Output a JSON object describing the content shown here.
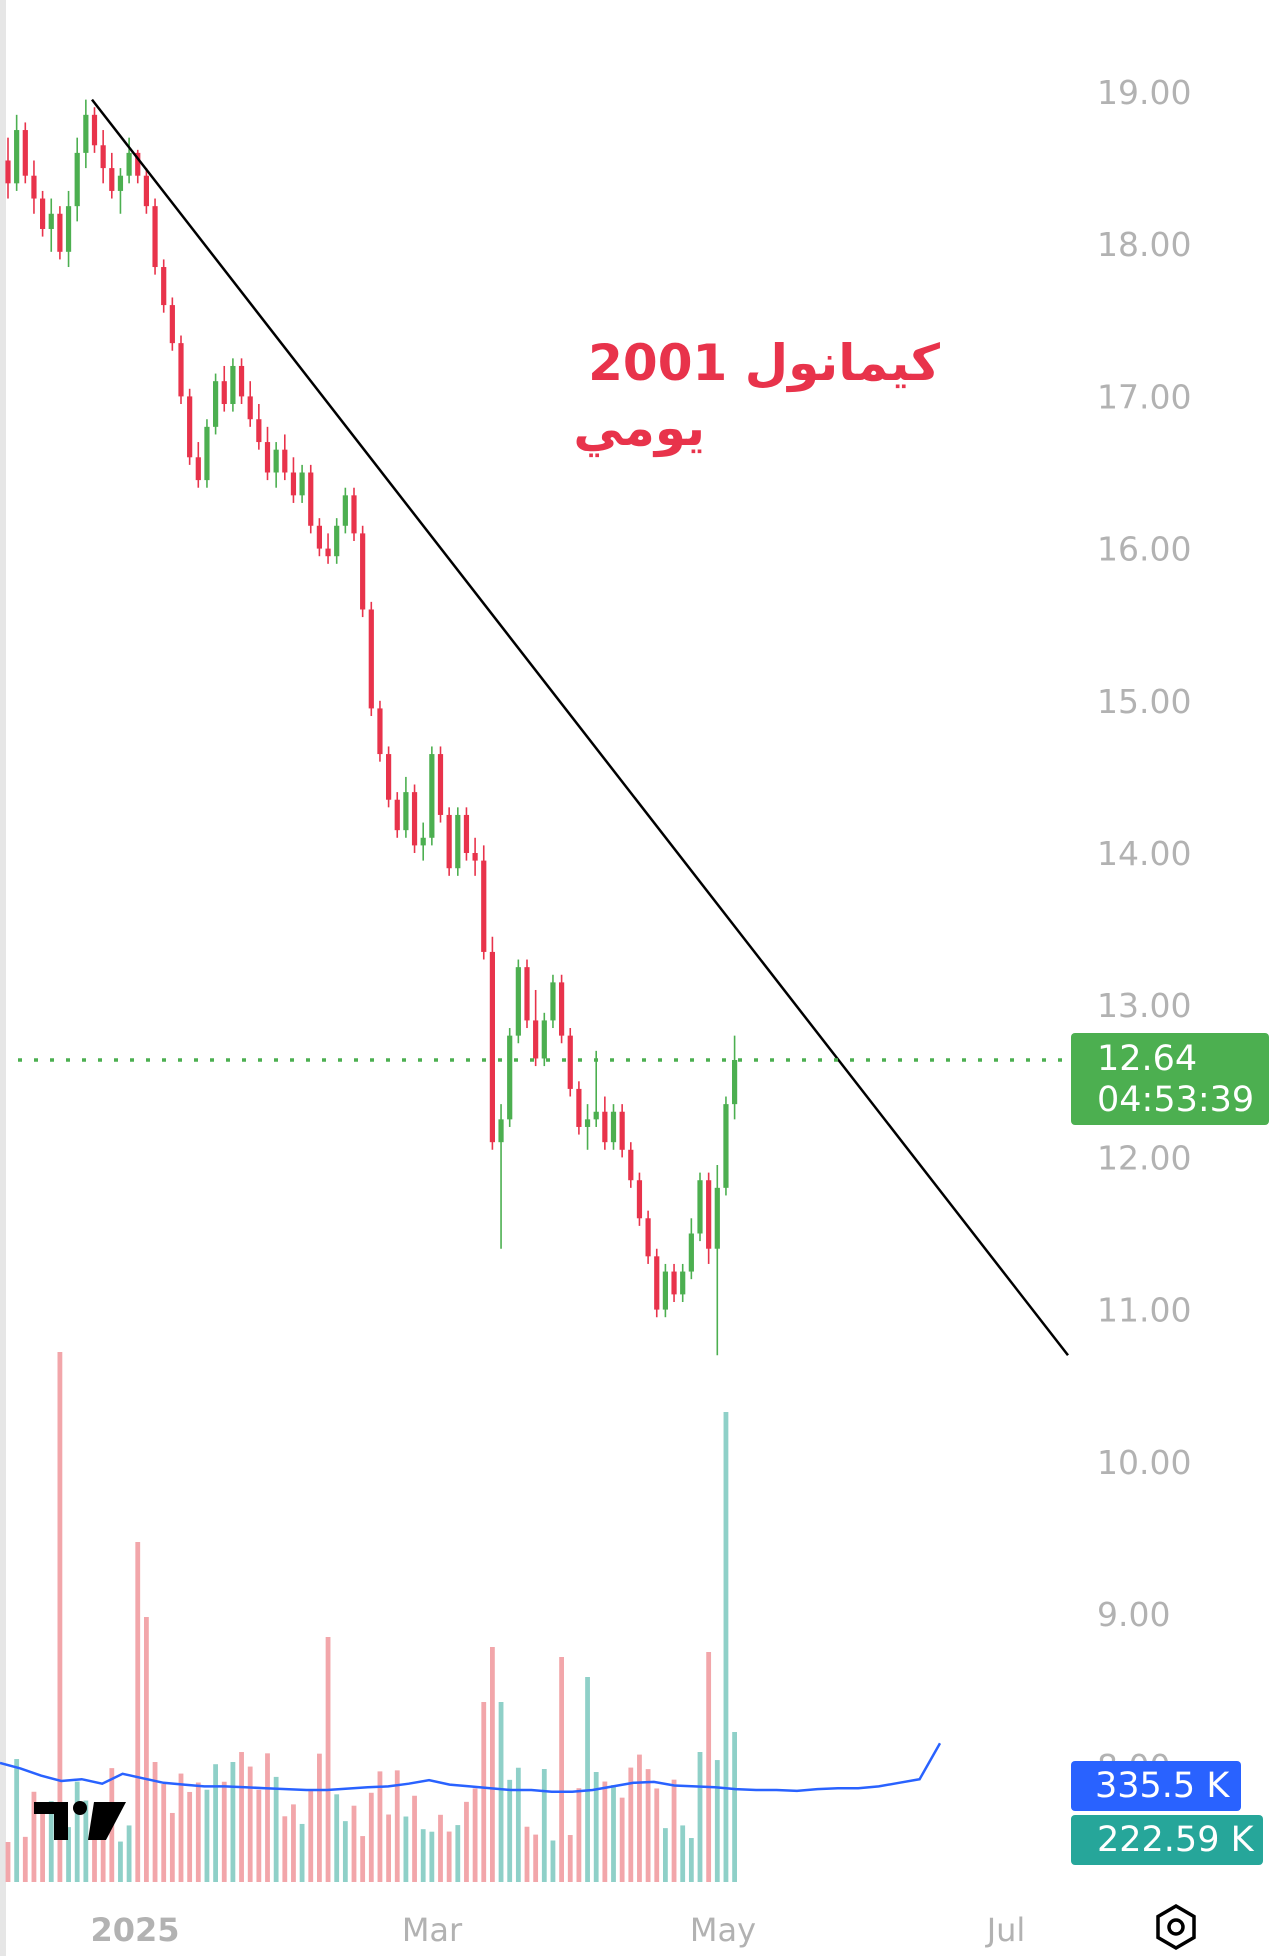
{
  "annotation": {
    "line1": "كيمانول 2001",
    "line2": "يومي",
    "color": "#e8334b"
  },
  "y_axis": {
    "ticks": [
      "19.00",
      "18.00",
      "17.00",
      "16.00",
      "15.00",
      "14.00",
      "13.00",
      "12.00",
      "11.00",
      "10.00",
      "9.00",
      "8.00"
    ]
  },
  "x_axis": {
    "labels": [
      "2025",
      "Mar",
      "May",
      "Jul"
    ]
  },
  "price_label": {
    "value": "12.64",
    "countdown": "04:53:39",
    "color": "#4caf50"
  },
  "volume_labels": {
    "ma": "335.5 K",
    "volume": "222.59 K",
    "ma_color": "#2962ff",
    "volume_color": "#26a69a"
  },
  "colors": {
    "up": "#4caf50",
    "down": "#e8334b",
    "vol_up": "#8fd0c8",
    "vol_down": "#f2a6aa",
    "trendline": "#000000",
    "axis_text": "#b2b2b2"
  },
  "chart_data": {
    "type": "candlestick",
    "symbol_title": "كيمانول 2001",
    "interval": "يومي",
    "ylim": [
      7.8,
      19.45
    ],
    "last_price": 12.64,
    "trendline": {
      "from": {
        "date": "2024-12-21",
        "price": 18.95
      },
      "to": {
        "date": "2025-06-26",
        "price": 10.7
      }
    },
    "y_ticks": [
      19,
      18,
      17,
      16,
      15,
      14,
      13,
      12,
      11,
      10,
      9,
      8
    ],
    "x_ticks": [
      "2025",
      "Mar",
      "May",
      "Jul"
    ],
    "candles": [
      [
        18.55,
        18.7,
        18.3,
        18.4
      ],
      [
        18.4,
        18.85,
        18.35,
        18.75
      ],
      [
        18.75,
        18.8,
        18.4,
        18.45
      ],
      [
        18.45,
        18.55,
        18.2,
        18.3
      ],
      [
        18.3,
        18.35,
        18.05,
        18.1
      ],
      [
        18.1,
        18.3,
        17.95,
        18.2
      ],
      [
        18.2,
        18.25,
        17.9,
        17.95
      ],
      [
        17.95,
        18.35,
        17.85,
        18.25
      ],
      [
        18.25,
        18.7,
        18.15,
        18.6
      ],
      [
        18.6,
        18.95,
        18.5,
        18.85
      ],
      [
        18.85,
        18.9,
        18.6,
        18.65
      ],
      [
        18.65,
        18.75,
        18.4,
        18.5
      ],
      [
        18.5,
        18.6,
        18.3,
        18.35
      ],
      [
        18.35,
        18.5,
        18.2,
        18.45
      ],
      [
        18.45,
        18.7,
        18.4,
        18.6
      ],
      [
        18.6,
        18.62,
        18.4,
        18.45
      ],
      [
        18.45,
        18.5,
        18.2,
        18.25
      ],
      [
        18.25,
        18.3,
        17.8,
        17.85
      ],
      [
        17.85,
        17.9,
        17.55,
        17.6
      ],
      [
        17.6,
        17.65,
        17.3,
        17.35
      ],
      [
        17.35,
        17.4,
        16.95,
        17.0
      ],
      [
        17.0,
        17.05,
        16.55,
        16.6
      ],
      [
        16.6,
        16.7,
        16.4,
        16.45
      ],
      [
        16.45,
        16.85,
        16.4,
        16.8
      ],
      [
        16.8,
        17.15,
        16.75,
        17.1
      ],
      [
        17.1,
        17.2,
        16.9,
        16.95
      ],
      [
        16.95,
        17.25,
        16.9,
        17.2
      ],
      [
        17.2,
        17.25,
        16.95,
        17.0
      ],
      [
        17.0,
        17.1,
        16.8,
        16.85
      ],
      [
        16.85,
        16.95,
        16.65,
        16.7
      ],
      [
        16.7,
        16.8,
        16.45,
        16.5
      ],
      [
        16.5,
        16.7,
        16.4,
        16.65
      ],
      [
        16.65,
        16.75,
        16.45,
        16.5
      ],
      [
        16.5,
        16.6,
        16.3,
        16.35
      ],
      [
        16.35,
        16.55,
        16.3,
        16.5
      ],
      [
        16.5,
        16.55,
        16.1,
        16.15
      ],
      [
        16.15,
        16.2,
        15.95,
        16.0
      ],
      [
        16.0,
        16.1,
        15.9,
        15.95
      ],
      [
        15.95,
        16.2,
        15.9,
        16.15
      ],
      [
        16.15,
        16.4,
        16.1,
        16.35
      ],
      [
        16.35,
        16.4,
        16.05,
        16.1
      ],
      [
        16.1,
        16.15,
        15.55,
        15.6
      ],
      [
        15.6,
        15.65,
        14.9,
        14.95
      ],
      [
        14.95,
        15.0,
        14.6,
        14.65
      ],
      [
        14.65,
        14.7,
        14.3,
        14.35
      ],
      [
        14.35,
        14.4,
        14.1,
        14.15
      ],
      [
        14.15,
        14.5,
        14.1,
        14.4
      ],
      [
        14.4,
        14.45,
        14.0,
        14.05
      ],
      [
        14.05,
        14.2,
        13.95,
        14.1
      ],
      [
        14.1,
        14.7,
        14.05,
        14.65
      ],
      [
        14.65,
        14.7,
        14.2,
        14.25
      ],
      [
        14.25,
        14.3,
        13.85,
        13.9
      ],
      [
        13.9,
        14.3,
        13.85,
        14.25
      ],
      [
        14.25,
        14.3,
        13.95,
        14.0
      ],
      [
        14.0,
        14.1,
        13.85,
        13.95
      ],
      [
        13.95,
        14.05,
        13.3,
        13.35
      ],
      [
        13.35,
        13.45,
        12.05,
        12.1
      ],
      [
        12.1,
        12.35,
        11.4,
        12.25
      ],
      [
        12.25,
        12.85,
        12.2,
        12.8
      ],
      [
        12.8,
        13.3,
        12.75,
        13.25
      ],
      [
        13.25,
        13.3,
        12.85,
        12.9
      ],
      [
        12.9,
        13.1,
        12.6,
        12.65
      ],
      [
        12.65,
        12.95,
        12.6,
        12.9
      ],
      [
        12.9,
        13.2,
        12.85,
        13.15
      ],
      [
        13.15,
        13.2,
        12.75,
        12.8
      ],
      [
        12.8,
        12.85,
        12.4,
        12.45
      ],
      [
        12.45,
        12.5,
        12.15,
        12.2
      ],
      [
        12.2,
        12.35,
        12.05,
        12.25
      ],
      [
        12.25,
        12.7,
        12.2,
        12.3
      ],
      [
        12.3,
        12.4,
        12.05,
        12.1
      ],
      [
        12.1,
        12.35,
        12.05,
        12.3
      ],
      [
        12.3,
        12.35,
        12.0,
        12.05
      ],
      [
        12.05,
        12.1,
        11.8,
        11.85
      ],
      [
        11.85,
        11.9,
        11.55,
        11.6
      ],
      [
        11.6,
        11.65,
        11.3,
        11.35
      ],
      [
        11.35,
        11.4,
        10.95,
        11.0
      ],
      [
        11.0,
        11.3,
        10.95,
        11.25
      ],
      [
        11.25,
        11.3,
        11.05,
        11.1
      ],
      [
        11.1,
        11.3,
        11.05,
        11.25
      ],
      [
        11.25,
        11.6,
        11.2,
        11.5
      ],
      [
        11.5,
        11.9,
        11.45,
        11.85
      ],
      [
        11.85,
        11.9,
        11.3,
        11.4
      ],
      [
        11.4,
        11.95,
        10.7,
        11.8
      ],
      [
        11.8,
        12.4,
        11.75,
        12.35
      ],
      [
        12.35,
        12.8,
        12.25,
        12.64
      ]
    ],
    "volume_ma": [
      230,
      200,
      160,
      130,
      140,
      115,
      170,
      145,
      120,
      110,
      100,
      100,
      95,
      90,
      85,
      80,
      80,
      88,
      95,
      100,
      115,
      135,
      110,
      100,
      90,
      80,
      80,
      70,
      70,
      80,
      100,
      120,
      125,
      105,
      100,
      95,
      85,
      80,
      80,
      75,
      85,
      90,
      90,
      100,
      120,
      140,
      340
    ]
  }
}
